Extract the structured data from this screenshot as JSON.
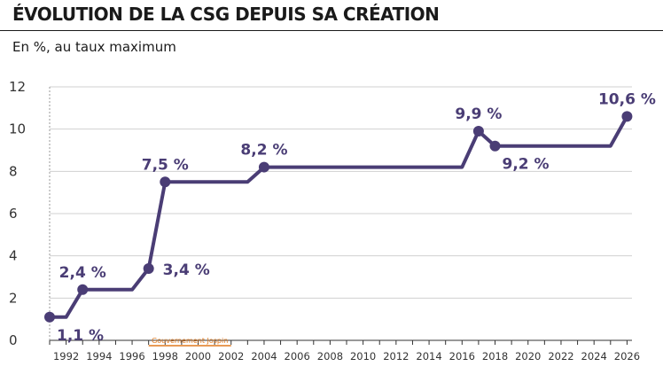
{
  "header": {
    "title": "ÉVOLUTION DE LA CSG DEPUIS SA CRÉATION",
    "subtitle": "En %, au taux maximum"
  },
  "chart_data": {
    "type": "line",
    "title": "ÉVOLUTION DE LA CSG DEPUIS SA CRÉATION",
    "subtitle": "En %, au taux maximum",
    "xlabel": "",
    "ylabel": "",
    "xlim": [
      1991,
      2026.3
    ],
    "ylim": [
      0,
      12
    ],
    "grid": true,
    "x_ticks": [
      1992,
      1994,
      1996,
      1998,
      2000,
      2002,
      2004,
      2006,
      2008,
      2010,
      2012,
      2014,
      2016,
      2018,
      2020,
      2022,
      2024,
      2026
    ],
    "y_ticks": [
      0,
      2,
      4,
      6,
      8,
      10,
      12
    ],
    "colors": {
      "line": "#4a3d75",
      "grid": "#d0d0d0",
      "annotation": "#e07a1f"
    },
    "series": [
      {
        "values": [
          {
            "x": 1991.0,
            "y": 1.1
          },
          {
            "x": 1992.0,
            "y": 1.1
          },
          {
            "x": 1993.0,
            "y": 2.4
          },
          {
            "x": 1996.0,
            "y": 2.4
          },
          {
            "x": 1997.0,
            "y": 3.4
          },
          {
            "x": 1998.0,
            "y": 7.5
          },
          {
            "x": 2003.0,
            "y": 7.5
          },
          {
            "x": 2004.0,
            "y": 8.2
          },
          {
            "x": 2016.0,
            "y": 8.2
          },
          {
            "x": 2017.0,
            "y": 9.9
          },
          {
            "x": 2018.0,
            "y": 9.2
          },
          {
            "x": 2025.0,
            "y": 9.2
          },
          {
            "x": 2026.0,
            "y": 10.6
          }
        ]
      }
    ],
    "markers": [
      {
        "x": 1991.0,
        "y": 1.1
      },
      {
        "x": 1993.0,
        "y": 2.4
      },
      {
        "x": 1997.0,
        "y": 3.4
      },
      {
        "x": 1998.0,
        "y": 7.5
      },
      {
        "x": 2004.0,
        "y": 8.2
      },
      {
        "x": 2017.0,
        "y": 9.9
      },
      {
        "x": 2018.0,
        "y": 9.2
      },
      {
        "x": 2026.0,
        "y": 10.6
      }
    ],
    "annotations": [
      {
        "text": "1,1 %",
        "x": 1991.0,
        "y": 1.1,
        "pos": "below-right"
      },
      {
        "text": "2,4 %",
        "x": 1993.0,
        "y": 2.4,
        "pos": "above"
      },
      {
        "text": "3,4 %",
        "x": 1997.0,
        "y": 3.4,
        "pos": "right"
      },
      {
        "text": "7,5 %",
        "x": 1998.0,
        "y": 7.5,
        "pos": "above"
      },
      {
        "text": "8,2 %",
        "x": 2004.0,
        "y": 8.2,
        "pos": "above"
      },
      {
        "text": "9,9 %",
        "x": 2017.0,
        "y": 9.9,
        "pos": "above"
      },
      {
        "text": "9,2 %",
        "x": 2018.0,
        "y": 9.2,
        "pos": "below-right"
      },
      {
        "text": "10,6 %",
        "x": 2026.0,
        "y": 10.6,
        "pos": "above"
      }
    ],
    "period_annotation": {
      "text": "Gouvernement Jospin",
      "x_start": 1997.0,
      "x_end": 2002.0
    }
  }
}
